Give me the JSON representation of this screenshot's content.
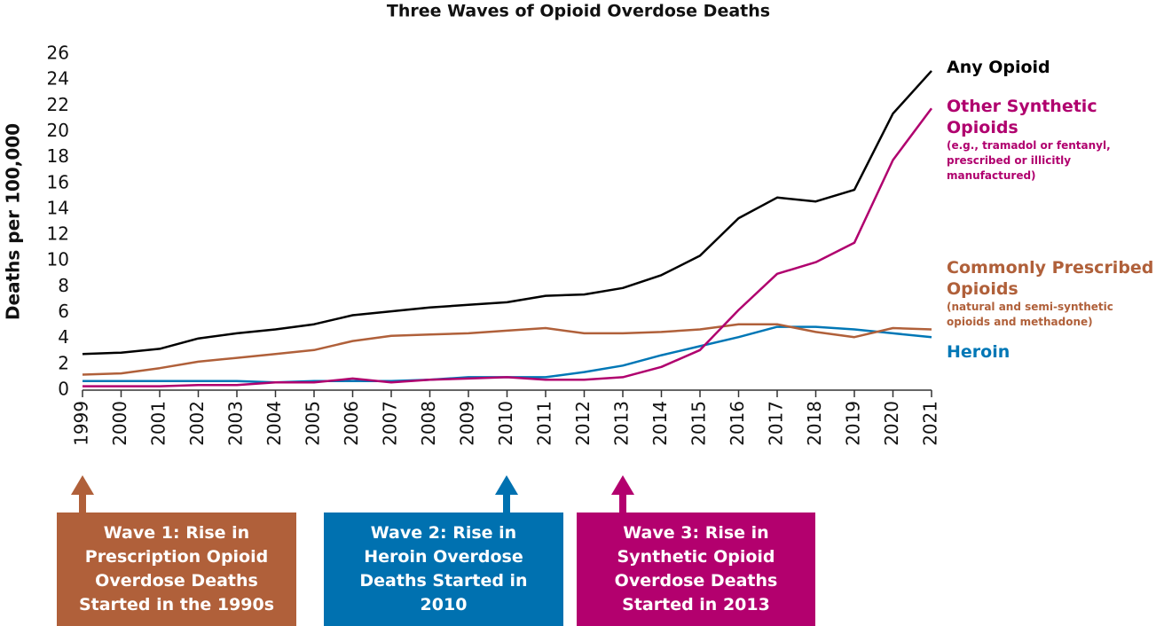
{
  "chart_data": {
    "type": "line",
    "title": "Three Waves of Opioid Overdose Deaths",
    "y_label": "Deaths per 100,000",
    "x": [
      1999,
      2000,
      2001,
      2002,
      2003,
      2004,
      2005,
      2006,
      2007,
      2008,
      2009,
      2010,
      2011,
      2012,
      2013,
      2014,
      2015,
      2016,
      2017,
      2018,
      2019,
      2020,
      2021
    ],
    "xlim": [
      1999,
      2021
    ],
    "xticks": [
      1999,
      2000,
      2001,
      2002,
      2003,
      2004,
      2005,
      2006,
      2007,
      2008,
      2009,
      2010,
      2011,
      2012,
      2013,
      2014,
      2015,
      2016,
      2017,
      2018,
      2019,
      2020,
      2021
    ],
    "ylim": [
      0,
      26
    ],
    "yticks": [
      0,
      2,
      4,
      6,
      8,
      10,
      12,
      14,
      16,
      18,
      20,
      22,
      24,
      26
    ],
    "grid": false,
    "series": [
      {
        "name": "Any Opioid",
        "color": "#000000",
        "values": [
          2.8,
          2.9,
          3.2,
          4.0,
          4.4,
          4.7,
          5.1,
          5.8,
          6.1,
          6.4,
          6.6,
          6.8,
          7.3,
          7.4,
          7.9,
          8.9,
          10.4,
          13.3,
          14.9,
          14.6,
          15.5,
          21.4,
          24.7
        ]
      },
      {
        "name": "Other Synthetic Opioids",
        "note": "(e.g., tramadol or fentanyl, prescribed or illicitly manufactured)",
        "color": "#b0006e",
        "values": [
          0.3,
          0.3,
          0.3,
          0.4,
          0.4,
          0.6,
          0.6,
          0.9,
          0.6,
          0.8,
          0.9,
          1.0,
          0.8,
          0.8,
          1.0,
          1.8,
          3.1,
          6.2,
          9.0,
          9.9,
          11.4,
          17.8,
          21.8
        ]
      },
      {
        "name": "Commonly Prescribed Opioids",
        "note": "(natural and semi-synthetic opioids and methadone)",
        "color": "#b0603a",
        "values": [
          1.2,
          1.3,
          1.7,
          2.2,
          2.5,
          2.8,
          3.1,
          3.8,
          4.2,
          4.3,
          4.4,
          4.6,
          4.8,
          4.4,
          4.4,
          4.5,
          4.7,
          5.1,
          5.1,
          4.5,
          4.1,
          4.8,
          4.7
        ]
      },
      {
        "name": "Heroin",
        "color": "#0077b6",
        "values": [
          0.7,
          0.7,
          0.7,
          0.7,
          0.7,
          0.6,
          0.7,
          0.7,
          0.7,
          0.8,
          1.0,
          1.0,
          1.0,
          1.4,
          1.9,
          2.7,
          3.4,
          4.1,
          4.9,
          4.9,
          4.7,
          4.4,
          4.1
        ]
      }
    ],
    "annotations": [
      {
        "text": "Wave 1: Rise in Prescription Opioid Overdose Deaths Started in the 1990s",
        "color": "#b0603a"
      },
      {
        "text": "Wave 2: Rise in Heroin Overdose Deaths Started in 2010",
        "color": "#0071b0"
      },
      {
        "text": "Wave 3: Rise in Synthetic Opioid Overdose Deaths Started in 2013",
        "color": "#b3006e"
      }
    ]
  }
}
